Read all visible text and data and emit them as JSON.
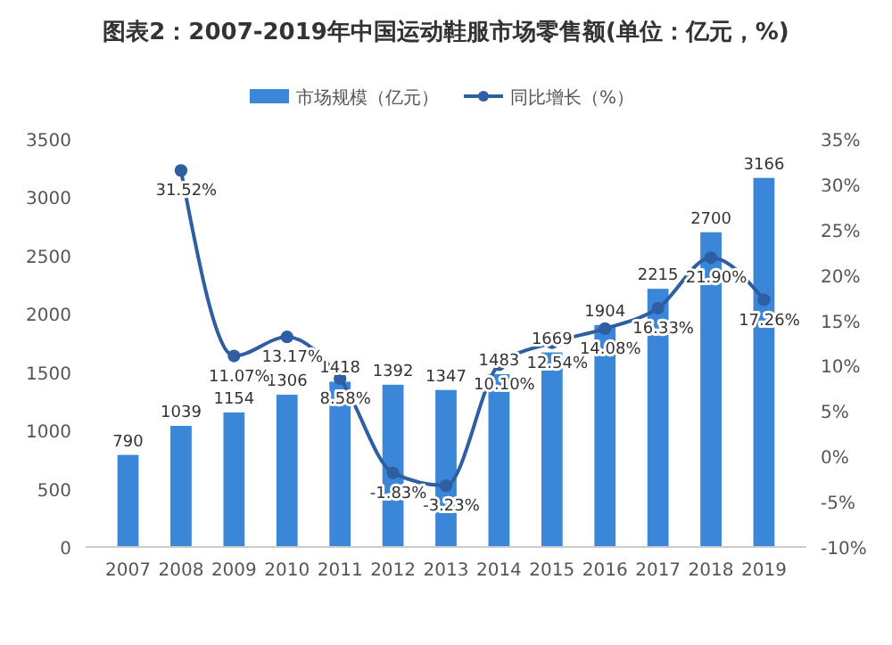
{
  "chart_data": {
    "type": "bar",
    "title": "图表2：2007-2019年中国运动鞋服市场零售额(单位：亿元，%)",
    "categories": [
      "2007",
      "2008",
      "2009",
      "2010",
      "2011",
      "2012",
      "2013",
      "2014",
      "2015",
      "2016",
      "2017",
      "2018",
      "2019"
    ],
    "series": [
      {
        "name": "市场规模（亿元）",
        "color": "#3a86d8",
        "values": [
          790,
          1039,
          1154,
          1306,
          1418,
          1392,
          1347,
          1483,
          1669,
          1904,
          2215,
          2700,
          3166
        ]
      },
      {
        "name": "同比增长（%）",
        "type": "line",
        "axis": "y2",
        "color": "#2e5fa3",
        "values": [
          null,
          31.52,
          11.07,
          13.17,
          8.58,
          -1.83,
          -3.23,
          10.1,
          12.54,
          14.08,
          16.33,
          21.9,
          17.26
        ],
        "value_labels": [
          null,
          "31.52%",
          "11.07%",
          "13.17%",
          "8.58%",
          "-1.83%",
          "-3.23%",
          "10.10%",
          "12.54%",
          "14.08%",
          "16.33%",
          "21.90%",
          "17.26%"
        ]
      }
    ],
    "data_labels": true,
    "ylim": [
      0,
      3500
    ],
    "yticks": [
      0,
      500,
      1000,
      1500,
      2000,
      2500,
      3000,
      3500
    ],
    "y2lim": [
      -10,
      35
    ],
    "y2ticks": [
      {
        "value": -10,
        "label": "-10%"
      },
      {
        "value": -5,
        "label": "-5%"
      },
      {
        "value": 0,
        "label": "0%"
      },
      {
        "value": 5,
        "label": "5%"
      },
      {
        "value": 10,
        "label": "10%"
      },
      {
        "value": 15,
        "label": "15%"
      },
      {
        "value": 20,
        "label": "20%"
      },
      {
        "value": 25,
        "label": "25%"
      },
      {
        "value": 30,
        "label": "30%"
      },
      {
        "value": 35,
        "label": "35%"
      }
    ],
    "legend": "top",
    "marker": "circle",
    "grid": false
  }
}
